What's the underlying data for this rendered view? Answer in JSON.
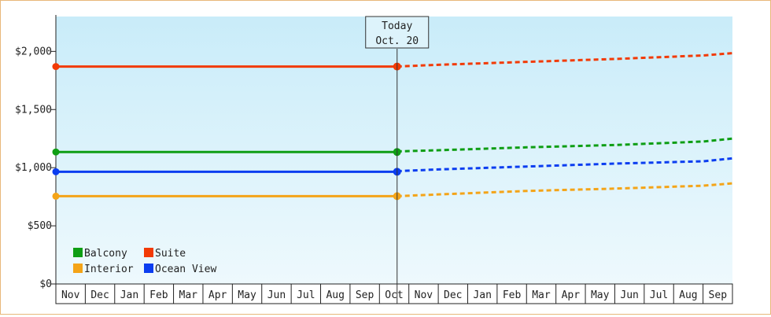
{
  "chart_data": {
    "type": "line",
    "title": "",
    "xlabel": "",
    "ylabel": "",
    "ylim": [
      0,
      2300
    ],
    "y_ticks": [
      {
        "value": 0,
        "label": "$0"
      },
      {
        "value": 500,
        "label": "$500"
      },
      {
        "value": 1000,
        "label": "$1,000"
      },
      {
        "value": 1500,
        "label": "$1,500"
      },
      {
        "value": 2000,
        "label": "$2,000"
      }
    ],
    "month_labels": [
      "Nov",
      "Dec",
      "Jan",
      "Feb",
      "Mar",
      "Apr",
      "May",
      "Jun",
      "Jul",
      "Aug",
      "Sep",
      "Oct",
      "Nov",
      "Dec",
      "Jan",
      "Feb",
      "Mar",
      "Apr",
      "May",
      "Jun",
      "Jul",
      "Aug",
      "Sep"
    ],
    "today": {
      "line1": "Today",
      "line2": "Oct. 20"
    },
    "grid": false,
    "legend_position": "bottom-left",
    "background_gradient": [
      "#c9ecf9",
      "#eef9fd"
    ],
    "series": [
      {
        "name": "Balcony",
        "color": "#0e9e14",
        "historical": [
          [
            0,
            1135
          ],
          [
            11.6,
            1135
          ]
        ],
        "forecast": [
          [
            11.6,
            1140
          ],
          [
            13,
            1150
          ],
          [
            16,
            1175
          ],
          [
            19,
            1195
          ],
          [
            22,
            1225
          ],
          [
            23,
            1250
          ]
        ]
      },
      {
        "name": "Suite",
        "color": "#f23a05",
        "historical": [
          [
            0,
            1870
          ],
          [
            11.6,
            1870
          ]
        ],
        "forecast": [
          [
            11.6,
            1870
          ],
          [
            13,
            1885
          ],
          [
            16,
            1910
          ],
          [
            19,
            1935
          ],
          [
            22,
            1965
          ],
          [
            23,
            1985
          ]
        ]
      },
      {
        "name": "Interior",
        "color": "#f4a418",
        "historical": [
          [
            0,
            755
          ],
          [
            11.6,
            755
          ]
        ],
        "forecast": [
          [
            11.6,
            755
          ],
          [
            13,
            770
          ],
          [
            16,
            800
          ],
          [
            19,
            820
          ],
          [
            22,
            845
          ],
          [
            23,
            865
          ]
        ]
      },
      {
        "name": "Ocean View",
        "color": "#0b3df0",
        "historical": [
          [
            0,
            965
          ],
          [
            11.6,
            965
          ]
        ],
        "forecast": [
          [
            11.6,
            970
          ],
          [
            13,
            985
          ],
          [
            16,
            1010
          ],
          [
            19,
            1035
          ],
          [
            22,
            1055
          ],
          [
            23,
            1080
          ]
        ]
      }
    ]
  }
}
